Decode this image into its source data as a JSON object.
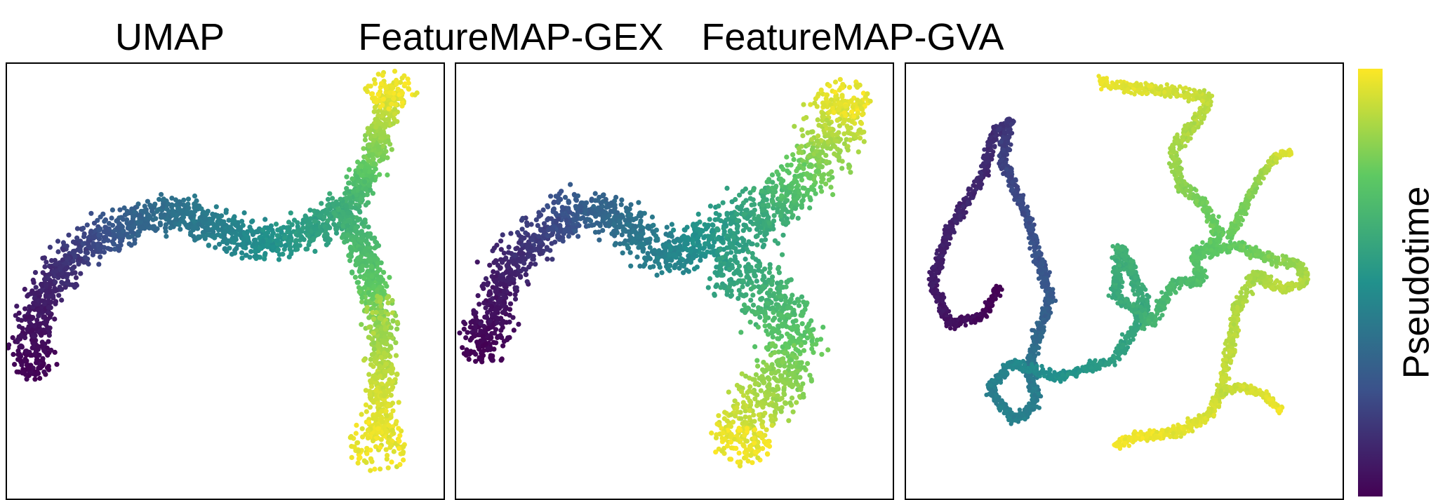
{
  "chart_data": {
    "type": "scatter",
    "colormap": "viridis",
    "colors": [
      "#440154",
      "#3b528b",
      "#21918c",
      "#5ec962",
      "#fde725"
    ],
    "colorbar": {
      "label": "Pseudotime",
      "ticks": false
    },
    "axes_visible": false,
    "grid": false,
    "panels": [
      {
        "title": "UMAP",
        "branches": [
          {
            "points": [
              [
                0.05,
                0.72
              ],
              [
                0.07,
                0.55
              ],
              [
                0.16,
                0.43
              ],
              [
                0.27,
                0.37
              ],
              [
                0.39,
                0.34
              ],
              [
                0.51,
                0.39
              ],
              [
                0.6,
                0.42
              ],
              [
                0.7,
                0.38
              ],
              [
                0.78,
                0.33
              ]
            ],
            "t": [
              0.0,
              0.08,
              0.18,
              0.3,
              0.38,
              0.44,
              0.5,
              0.56,
              0.62
            ],
            "width": 0.06
          },
          {
            "points": [
              [
                0.78,
                0.33
              ],
              [
                0.84,
                0.22
              ],
              [
                0.87,
                0.1
              ],
              [
                0.88,
                0.05
              ]
            ],
            "t": [
              0.62,
              0.78,
              0.92,
              0.98
            ],
            "width": 0.045
          },
          {
            "points": [
              [
                0.78,
                0.33
              ],
              [
                0.83,
                0.48
              ],
              [
                0.86,
                0.62
              ],
              [
                0.86,
                0.74
              ],
              [
                0.85,
                0.86
              ]
            ],
            "t": [
              0.62,
              0.72,
              0.84,
              0.92,
              0.98
            ],
            "width": 0.05
          }
        ],
        "clusters": [
          {
            "x": 0.88,
            "y": 0.06,
            "rx": 0.06,
            "ry": 0.045,
            "t": 0.98
          },
          {
            "x": 0.85,
            "y": 0.88,
            "rx": 0.07,
            "ry": 0.06,
            "t": 0.97
          },
          {
            "x": 0.86,
            "y": 0.58,
            "rx": 0.04,
            "ry": 0.05,
            "t": 0.86
          }
        ]
      },
      {
        "title": "FeatureMAP-GEX",
        "branches": [
          {
            "points": [
              [
                0.06,
                0.68
              ],
              [
                0.1,
                0.5
              ],
              [
                0.2,
                0.38
              ],
              [
                0.3,
                0.33
              ],
              [
                0.4,
                0.38
              ],
              [
                0.5,
                0.45
              ],
              [
                0.58,
                0.4
              ]
            ],
            "t": [
              0.0,
              0.08,
              0.2,
              0.3,
              0.38,
              0.45,
              0.52
            ],
            "width": 0.07
          },
          {
            "points": [
              [
                0.58,
                0.4
              ],
              [
                0.72,
                0.34
              ],
              [
                0.84,
                0.22
              ],
              [
                0.89,
                0.08
              ]
            ],
            "t": [
              0.52,
              0.62,
              0.82,
              0.97
            ],
            "width": 0.09
          },
          {
            "points": [
              [
                0.6,
                0.45
              ],
              [
                0.74,
                0.54
              ],
              [
                0.78,
                0.68
              ],
              [
                0.68,
                0.8
              ],
              [
                0.64,
                0.88
              ]
            ],
            "t": [
              0.55,
              0.66,
              0.78,
              0.9,
              0.98
            ],
            "width": 0.1
          }
        ],
        "clusters": [
          {
            "x": 0.89,
            "y": 0.08,
            "rx": 0.06,
            "ry": 0.045,
            "t": 0.97
          },
          {
            "x": 0.65,
            "y": 0.88,
            "rx": 0.07,
            "ry": 0.045,
            "t": 0.98
          }
        ]
      },
      {
        "title": "FeatureMAP-GVA",
        "branches": [
          {
            "points": [
              [
                0.21,
                0.51
              ],
              [
                0.18,
                0.58
              ],
              [
                0.1,
                0.6
              ],
              [
                0.06,
                0.5
              ],
              [
                0.1,
                0.38
              ],
              [
                0.18,
                0.25
              ],
              [
                0.2,
                0.16
              ],
              [
                0.24,
                0.13
              ],
              [
                0.22,
                0.22
              ],
              [
                0.28,
                0.36
              ],
              [
                0.33,
                0.54
              ],
              [
                0.3,
                0.63
              ],
              [
                0.28,
                0.7
              ],
              [
                0.3,
                0.78
              ],
              [
                0.25,
                0.82
              ],
              [
                0.19,
                0.75
              ],
              [
                0.24,
                0.69
              ],
              [
                0.35,
                0.72
              ],
              [
                0.48,
                0.68
              ],
              [
                0.55,
                0.56
              ]
            ],
            "t": [
              0.0,
              0.02,
              0.05,
              0.08,
              0.1,
              0.12,
              0.14,
              0.16,
              0.2,
              0.24,
              0.28,
              0.34,
              0.4,
              0.42,
              0.44,
              0.42,
              0.46,
              0.5,
              0.56,
              0.6
            ],
            "width": 0.016
          },
          {
            "points": [
              [
                0.55,
                0.56
              ],
              [
                0.52,
                0.48
              ],
              [
                0.49,
                0.42
              ],
              [
                0.48,
                0.54
              ],
              [
                0.53,
                0.56
              ],
              [
                0.56,
                0.6
              ]
            ],
            "t": [
              0.6,
              0.62,
              0.64,
              0.6,
              0.62,
              0.65
            ],
            "width": 0.02
          },
          {
            "points": [
              [
                0.56,
                0.6
              ],
              [
                0.62,
                0.5
              ],
              [
                0.68,
                0.5
              ],
              [
                0.66,
                0.44
              ],
              [
                0.72,
                0.4
              ],
              [
                0.68,
                0.32
              ],
              [
                0.63,
                0.28
              ],
              [
                0.61,
                0.2
              ],
              [
                0.66,
                0.14
              ],
              [
                0.7,
                0.08
              ],
              [
                0.65,
                0.07
              ],
              [
                0.58,
                0.06
              ],
              [
                0.49,
                0.05
              ],
              [
                0.44,
                0.04
              ]
            ],
            "t": [
              0.65,
              0.68,
              0.7,
              0.72,
              0.75,
              0.78,
              0.82,
              0.86,
              0.88,
              0.9,
              0.92,
              0.94,
              0.96,
              0.98
            ],
            "width": 0.018
          },
          {
            "points": [
              [
                0.66,
                0.44
              ],
              [
                0.76,
                0.42
              ],
              [
                0.84,
                0.45
              ],
              [
                0.9,
                0.46
              ],
              [
                0.92,
                0.5
              ],
              [
                0.86,
                0.52
              ],
              [
                0.8,
                0.48
              ],
              [
                0.76,
                0.56
              ],
              [
                0.74,
                0.66
              ],
              [
                0.72,
                0.76
              ],
              [
                0.7,
                0.8
              ],
              [
                0.64,
                0.84
              ],
              [
                0.52,
                0.86
              ],
              [
                0.48,
                0.88
              ]
            ],
            "t": [
              0.72,
              0.76,
              0.8,
              0.84,
              0.88,
              0.9,
              0.86,
              0.88,
              0.9,
              0.92,
              0.94,
              0.96,
              0.98,
              0.99
            ],
            "width": 0.018
          },
          {
            "points": [
              [
                0.72,
                0.76
              ],
              [
                0.76,
                0.74
              ],
              [
                0.82,
                0.76
              ],
              [
                0.86,
                0.8
              ]
            ],
            "t": [
              0.9,
              0.92,
              0.95,
              0.98
            ],
            "width": 0.012
          },
          {
            "points": [
              [
                0.74,
                0.4
              ],
              [
                0.8,
                0.28
              ],
              [
                0.84,
                0.22
              ],
              [
                0.88,
                0.2
              ]
            ],
            "t": [
              0.76,
              0.82,
              0.9,
              0.96
            ],
            "width": 0.012
          }
        ],
        "clusters": []
      }
    ]
  }
}
